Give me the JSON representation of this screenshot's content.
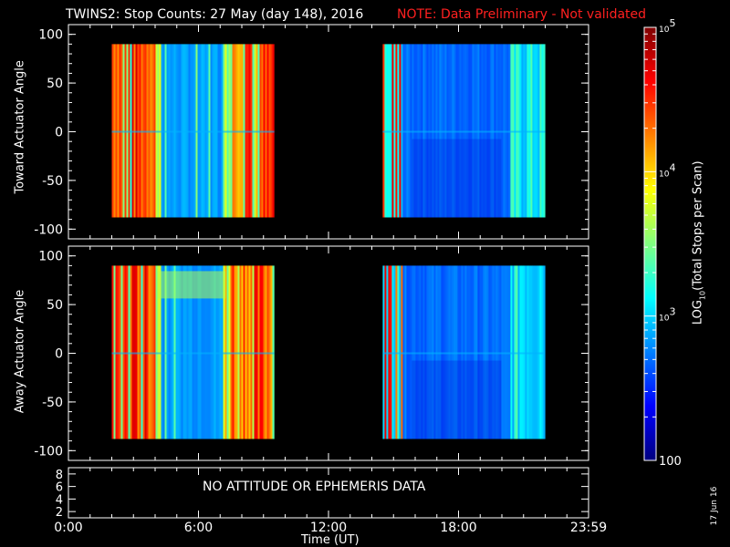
{
  "title": "TWINS2: Stop Counts: 27 May (day 148), 2016",
  "note": "NOTE: Data Preliminary - Not validated",
  "message": "NO ATTITUDE OR EPHEMERIS DATA",
  "datestamp": "17 Jun 16",
  "xlabel": "Time (UT)",
  "colorbar": {
    "label_prefix": "LOG",
    "label_sub": "10",
    "label_suffix": "(Total Stops per Scan)",
    "scale": "log",
    "min": 100,
    "max": 100000,
    "ticks": [
      {
        "value": 100,
        "label": "100"
      },
      {
        "value": 1000,
        "label": "10^3"
      },
      {
        "value": 10000,
        "label": "10^4"
      },
      {
        "value": 100000,
        "label": "10^5"
      }
    ],
    "colormap": [
      "#00007f",
      "#0000ff",
      "#0080ff",
      "#00ffff",
      "#80ff80",
      "#ffff00",
      "#ff8000",
      "#ff0000",
      "#800000"
    ]
  },
  "chart_data": [
    {
      "type": "heatmap",
      "panel": "top",
      "ylabel": "Toward Actuator Angle",
      "xlim": [
        0,
        24
      ],
      "ylim": [
        -110,
        110
      ],
      "yticks": [
        -100,
        -50,
        0,
        50,
        100
      ],
      "xticks": [
        0,
        6,
        12,
        18,
        24
      ],
      "data_ranges_hours": [
        [
          2.0,
          9.5
        ],
        [
          14.5,
          22.0
        ]
      ],
      "data_angle_range": [
        -88,
        90
      ]
    },
    {
      "type": "heatmap",
      "panel": "middle",
      "ylabel": "Away Actuator Angle",
      "xlim": [
        0,
        24
      ],
      "ylim": [
        -110,
        110
      ],
      "yticks": [
        -100,
        -50,
        0,
        50,
        100
      ],
      "xticks": [
        0,
        6,
        12,
        18,
        24
      ],
      "data_ranges_hours": [
        [
          2.0,
          9.5
        ],
        [
          14.5,
          22.0
        ]
      ],
      "data_angle_range": [
        -88,
        90
      ]
    },
    {
      "type": "line",
      "panel": "bottom",
      "xlim": [
        0,
        24
      ],
      "ylim": [
        1,
        9
      ],
      "yticks": [
        2,
        4,
        6,
        8
      ],
      "xticks": [
        0,
        6,
        12,
        18,
        24
      ],
      "xticklabels": [
        "0:00",
        "6:00",
        "12:00",
        "18:00",
        "23:59"
      ],
      "series": []
    }
  ]
}
